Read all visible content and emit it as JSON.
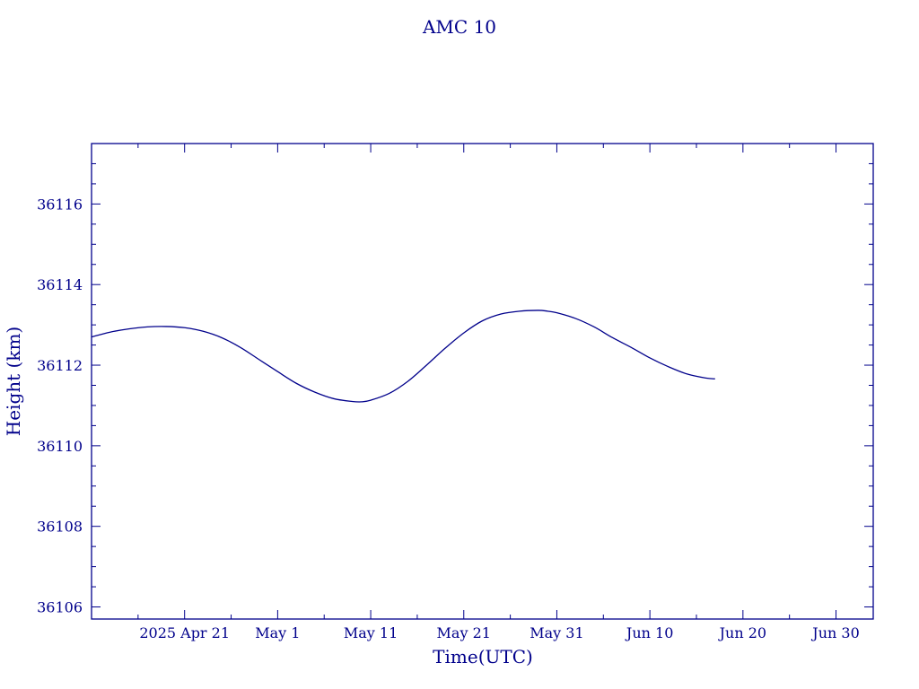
{
  "chart_data": {
    "type": "line",
    "title": "AMC 10",
    "xlabel": "Time(UTC)",
    "ylabel": "Height (km)",
    "xlim": [
      "2025-04-11",
      "2025-07-04"
    ],
    "ylim": [
      36105.7,
      36117.5
    ],
    "x_tick_labels": [
      {
        "date": "2025-04-21",
        "label": "2025 Apr 21"
      },
      {
        "date": "2025-05-01",
        "label": "May  1"
      },
      {
        "date": "2025-05-11",
        "label": "May 11"
      },
      {
        "date": "2025-05-21",
        "label": "May 21"
      },
      {
        "date": "2025-05-31",
        "label": "May 31"
      },
      {
        "date": "2025-06-10",
        "label": "Jun 10"
      },
      {
        "date": "2025-06-20",
        "label": "Jun 20"
      },
      {
        "date": "2025-06-30",
        "label": "Jun 30"
      }
    ],
    "y_ticks": [
      36106,
      36108,
      36110,
      36112,
      36114,
      36116
    ],
    "y_tick_labels": [
      "36106",
      "36108",
      "36110",
      "36112",
      "36114",
      "36116"
    ],
    "grid": false,
    "color": "#00008b",
    "series": [
      {
        "x": [
          "2025-04-11",
          "2025-04-13",
          "2025-04-15",
          "2025-04-17",
          "2025-04-19",
          "2025-04-21",
          "2025-04-23",
          "2025-04-25",
          "2025-04-27",
          "2025-04-29",
          "2025-05-01",
          "2025-05-03",
          "2025-05-05",
          "2025-05-07",
          "2025-05-09",
          "2025-05-10",
          "2025-05-11",
          "2025-05-13",
          "2025-05-15",
          "2025-05-17",
          "2025-05-19",
          "2025-05-21",
          "2025-05-23",
          "2025-05-25",
          "2025-05-27",
          "2025-05-29",
          "2025-05-30",
          "2025-05-31",
          "2025-06-02",
          "2025-06-04",
          "2025-06-06",
          "2025-06-08",
          "2025-06-10",
          "2025-06-12",
          "2025-06-14",
          "2025-06-16",
          "2025-06-17"
        ],
        "y": [
          36112.7,
          36112.82,
          36112.9,
          36112.95,
          36112.96,
          36112.93,
          36112.84,
          36112.68,
          36112.44,
          36112.14,
          36111.84,
          36111.55,
          36111.33,
          36111.17,
          36111.1,
          36111.09,
          36111.13,
          36111.3,
          36111.6,
          36112.0,
          36112.42,
          36112.8,
          36113.1,
          36113.27,
          36113.34,
          36113.36,
          36113.34,
          36113.3,
          36113.16,
          36112.95,
          36112.68,
          36112.44,
          36112.18,
          36111.96,
          36111.78,
          36111.68,
          36111.66
        ]
      }
    ]
  }
}
